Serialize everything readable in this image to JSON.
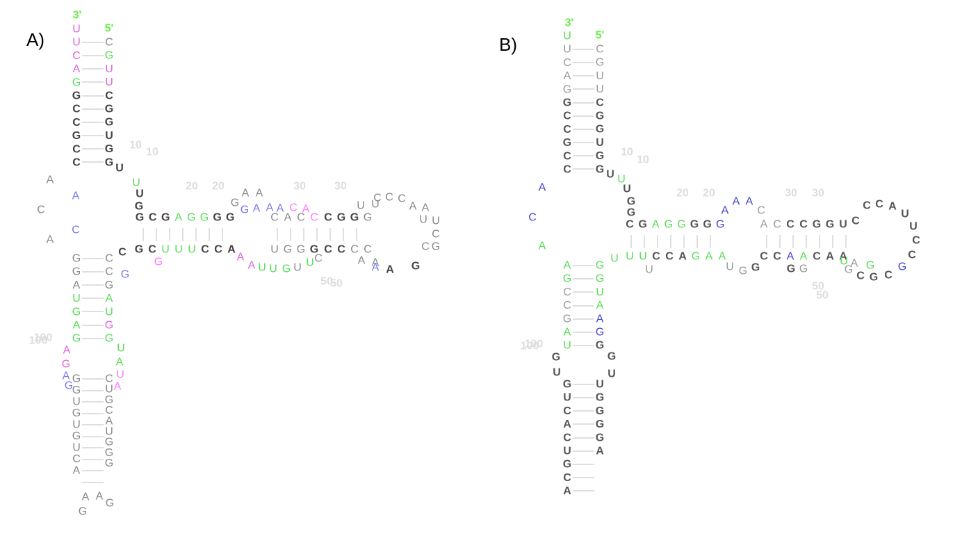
{
  "panels": [
    {
      "id": "A",
      "label": "A)",
      "end_labels": [
        "3'",
        "5'"
      ],
      "position_labels": [
        "10",
        "10",
        "20",
        "20",
        "30",
        "30",
        "50",
        "50",
        "100",
        "100"
      ],
      "colors": {
        "gray": "#888888",
        "dark": "#444444",
        "green": "#55dd55",
        "blue": "#7777ee",
        "magenta": "#dd66dd",
        "pink": "#ff77ff"
      },
      "nucleotides": [
        {
          "t": "U",
          "c": "magenta"
        },
        {
          "t": "U",
          "c": "magenta"
        },
        {
          "t": "C",
          "c": "magenta"
        },
        {
          "t": "A",
          "c": "magenta"
        },
        {
          "t": "G",
          "c": "green"
        },
        {
          "t": "G",
          "c": "dark"
        },
        {
          "t": "C",
          "c": "dark"
        },
        {
          "t": "C",
          "c": "dark"
        },
        {
          "t": "G",
          "c": "dark"
        },
        {
          "t": "C",
          "c": "dark"
        },
        {
          "t": "C",
          "c": "dark"
        },
        {
          "t": "C",
          "c": "gray"
        },
        {
          "t": "G",
          "c": "green"
        },
        {
          "t": "U",
          "c": "magenta"
        },
        {
          "t": "U",
          "c": "magenta"
        },
        {
          "t": "C",
          "c": "dark"
        },
        {
          "t": "G",
          "c": "dark"
        },
        {
          "t": "G",
          "c": "dark"
        },
        {
          "t": "U",
          "c": "dark"
        },
        {
          "t": "G",
          "c": "dark"
        },
        {
          "t": "G",
          "c": "dark"
        },
        {
          "t": "A",
          "c": "gray"
        },
        {
          "t": "C",
          "c": "gray"
        },
        {
          "t": "A",
          "c": "gray"
        },
        {
          "t": "A",
          "c": "blue"
        },
        {
          "t": "C",
          "c": "blue"
        },
        {
          "t": "U",
          "c": "dark"
        },
        {
          "t": "U",
          "c": "green"
        },
        {
          "t": "U",
          "c": "dark"
        },
        {
          "t": "G",
          "c": "dark"
        },
        {
          "t": "G",
          "c": "dark"
        },
        {
          "t": "C",
          "c": "dark"
        },
        {
          "t": "G",
          "c": "dark"
        },
        {
          "t": "A",
          "c": "green"
        },
        {
          "t": "G",
          "c": "green"
        },
        {
          "t": "G",
          "c": "green"
        },
        {
          "t": "G",
          "c": "dark"
        },
        {
          "t": "G",
          "c": "dark"
        },
        {
          "t": "G",
          "c": "gray"
        },
        {
          "t": "A",
          "c": "gray"
        },
        {
          "t": "A",
          "c": "gray"
        },
        {
          "t": "G",
          "c": "blue"
        },
        {
          "t": "A",
          "c": "blue"
        },
        {
          "t": "A",
          "c": "blue"
        },
        {
          "t": "A",
          "c": "blue"
        },
        {
          "t": "C",
          "c": "pink"
        },
        {
          "t": "A",
          "c": "pink"
        },
        {
          "t": "C",
          "c": "gray"
        },
        {
          "t": "A",
          "c": "gray"
        },
        {
          "t": "C",
          "c": "gray"
        },
        {
          "t": "C",
          "c": "pink"
        },
        {
          "t": "C",
          "c": "dark"
        },
        {
          "t": "G",
          "c": "dark"
        },
        {
          "t": "G",
          "c": "dark"
        },
        {
          "t": "G",
          "c": "gray"
        },
        {
          "t": "U",
          "c": "gray"
        },
        {
          "t": "U",
          "c": "gray"
        },
        {
          "t": "C",
          "c": "gray"
        },
        {
          "t": "C",
          "c": "gray"
        },
        {
          "t": "C",
          "c": "gray"
        },
        {
          "t": "A",
          "c": "gray"
        },
        {
          "t": "A",
          "c": "gray"
        },
        {
          "t": "U",
          "c": "gray"
        },
        {
          "t": "U",
          "c": "gray"
        },
        {
          "t": "C",
          "c": "gray"
        },
        {
          "t": "C",
          "c": "gray"
        },
        {
          "t": "G",
          "c": "gray"
        },
        {
          "t": "C",
          "c": "dark"
        },
        {
          "t": "G",
          "c": "dark"
        },
        {
          "t": "C",
          "c": "dark"
        },
        {
          "t": "U",
          "c": "green"
        },
        {
          "t": "U",
          "c": "green"
        },
        {
          "t": "U",
          "c": "green"
        },
        {
          "t": "C",
          "c": "dark"
        },
        {
          "t": "C",
          "c": "dark"
        },
        {
          "t": "A",
          "c": "dark"
        },
        {
          "t": "G",
          "c": "pink"
        },
        {
          "t": "A",
          "c": "magenta"
        },
        {
          "t": "A",
          "c": "magenta"
        },
        {
          "t": "U",
          "c": "green"
        },
        {
          "t": "U",
          "c": "green"
        },
        {
          "t": "G",
          "c": "green"
        },
        {
          "t": "U",
          "c": "gray"
        },
        {
          "t": "U",
          "c": "gray"
        },
        {
          "t": "G",
          "c": "gray"
        },
        {
          "t": "G",
          "c": "gray"
        },
        {
          "t": "G",
          "c": "dark"
        },
        {
          "t": "C",
          "c": "dark"
        },
        {
          "t": "C",
          "c": "dark"
        },
        {
          "t": "C",
          "c": "gray"
        },
        {
          "t": "C",
          "c": "gray"
        },
        {
          "t": "A",
          "c": "gray"
        },
        {
          "t": "A",
          "c": "blue"
        },
        {
          "t": "U",
          "c": "green"
        },
        {
          "t": "C",
          "c": "gray"
        },
        {
          "t": "A",
          "c": "gray"
        },
        {
          "t": "A",
          "c": "dark"
        },
        {
          "t": "G",
          "c": "dark"
        },
        {
          "t": "G",
          "c": "blue"
        },
        {
          "t": "G",
          "c": "gray"
        },
        {
          "t": "G",
          "c": "gray"
        },
        {
          "t": "A",
          "c": "gray"
        },
        {
          "t": "U",
          "c": "green"
        },
        {
          "t": "G",
          "c": "green"
        },
        {
          "t": "A",
          "c": "green"
        },
        {
          "t": "G",
          "c": "green"
        },
        {
          "t": "C",
          "c": "gray"
        },
        {
          "t": "C",
          "c": "gray"
        },
        {
          "t": "G",
          "c": "gray"
        },
        {
          "t": "A",
          "c": "green"
        },
        {
          "t": "U",
          "c": "green"
        },
        {
          "t": "G",
          "c": "magenta"
        },
        {
          "t": "G",
          "c": "green"
        },
        {
          "t": "U",
          "c": "green"
        },
        {
          "t": "A",
          "c": "green"
        },
        {
          "t": "U",
          "c": "pink"
        },
        {
          "t": "A",
          "c": "pink"
        },
        {
          "t": "A",
          "c": "magenta"
        },
        {
          "t": "G",
          "c": "magenta"
        },
        {
          "t": "A",
          "c": "blue"
        },
        {
          "t": "G",
          "c": "blue"
        },
        {
          "t": "G",
          "c": "gray"
        },
        {
          "t": "G",
          "c": "gray"
        },
        {
          "t": "U",
          "c": "gray"
        },
        {
          "t": "G",
          "c": "gray"
        },
        {
          "t": "U",
          "c": "gray"
        },
        {
          "t": "G",
          "c": "gray"
        },
        {
          "t": "U",
          "c": "gray"
        },
        {
          "t": "C",
          "c": "gray"
        },
        {
          "t": "A",
          "c": "gray"
        },
        {
          "t": "C",
          "c": "gray"
        },
        {
          "t": "U",
          "c": "gray"
        },
        {
          "t": "G",
          "c": "gray"
        },
        {
          "t": "C",
          "c": "gray"
        },
        {
          "t": "A",
          "c": "gray"
        },
        {
          "t": "U",
          "c": "gray"
        },
        {
          "t": "G",
          "c": "gray"
        },
        {
          "t": "G",
          "c": "gray"
        },
        {
          "t": "G",
          "c": "gray"
        },
        {
          "t": "G",
          "c": "gray"
        },
        {
          "t": "A",
          "c": "gray"
        },
        {
          "t": "A",
          "c": "gray"
        },
        {
          "t": "G",
          "c": "gray"
        }
      ]
    },
    {
      "id": "B",
      "label": "B)",
      "end_labels": [
        "3'",
        "5'"
      ],
      "position_labels": [
        "10",
        "10",
        "20",
        "20",
        "30",
        "30",
        "50",
        "50",
        "100",
        "100"
      ],
      "colors": {
        "gray": "#999999",
        "dark": "#555555",
        "green": "#55dd55",
        "blue": "#4444cc"
      },
      "nucleotides": [
        {
          "t": "U",
          "c": "green"
        },
        {
          "t": "U",
          "c": "gray"
        },
        {
          "t": "C",
          "c": "gray"
        },
        {
          "t": "A",
          "c": "gray"
        },
        {
          "t": "G",
          "c": "gray"
        },
        {
          "t": "G",
          "c": "dark"
        },
        {
          "t": "C",
          "c": "dark"
        },
        {
          "t": "C",
          "c": "dark"
        },
        {
          "t": "G",
          "c": "dark"
        },
        {
          "t": "C",
          "c": "dark"
        },
        {
          "t": "C",
          "c": "dark"
        },
        {
          "t": "C",
          "c": "gray"
        },
        {
          "t": "G",
          "c": "gray"
        },
        {
          "t": "U",
          "c": "gray"
        },
        {
          "t": "U",
          "c": "gray"
        },
        {
          "t": "C",
          "c": "dark"
        },
        {
          "t": "G",
          "c": "dark"
        },
        {
          "t": "G",
          "c": "dark"
        },
        {
          "t": "U",
          "c": "dark"
        },
        {
          "t": "G",
          "c": "dark"
        },
        {
          "t": "G",
          "c": "dark"
        },
        {
          "t": "A",
          "c": "blue"
        },
        {
          "t": "C",
          "c": "blue"
        },
        {
          "t": "A",
          "c": "green"
        },
        {
          "t": "U",
          "c": "dark"
        },
        {
          "t": "U",
          "c": "green"
        },
        {
          "t": "U",
          "c": "dark"
        },
        {
          "t": "G",
          "c": "dark"
        },
        {
          "t": "G",
          "c": "dark"
        },
        {
          "t": "C",
          "c": "dark"
        },
        {
          "t": "G",
          "c": "dark"
        },
        {
          "t": "A",
          "c": "green"
        },
        {
          "t": "G",
          "c": "green"
        },
        {
          "t": "G",
          "c": "green"
        },
        {
          "t": "G",
          "c": "dark"
        },
        {
          "t": "G",
          "c": "dark"
        },
        {
          "t": "G",
          "c": "blue"
        },
        {
          "t": "A",
          "c": "blue"
        },
        {
          "t": "A",
          "c": "blue"
        },
        {
          "t": "A",
          "c": "blue"
        },
        {
          "t": "C",
          "c": "gray"
        },
        {
          "t": "A",
          "c": "gray"
        },
        {
          "t": "C",
          "c": "gray"
        },
        {
          "t": "C",
          "c": "dark"
        },
        {
          "t": "C",
          "c": "dark"
        },
        {
          "t": "G",
          "c": "dark"
        },
        {
          "t": "G",
          "c": "dark"
        },
        {
          "t": "U",
          "c": "dark"
        },
        {
          "t": "C",
          "c": "dark"
        },
        {
          "t": "C",
          "c": "dark"
        },
        {
          "t": "C",
          "c": "dark"
        },
        {
          "t": "A",
          "c": "dark"
        },
        {
          "t": "U",
          "c": "dark"
        },
        {
          "t": "U",
          "c": "dark"
        },
        {
          "t": "C",
          "c": "dark"
        },
        {
          "t": "C",
          "c": "dark"
        },
        {
          "t": "G",
          "c": "blue"
        },
        {
          "t": "C",
          "c": "dark"
        },
        {
          "t": "G",
          "c": "dark"
        },
        {
          "t": "C",
          "c": "dark"
        },
        {
          "t": "U",
          "c": "green"
        },
        {
          "t": "U",
          "c": "green"
        },
        {
          "t": "U",
          "c": "green"
        },
        {
          "t": "C",
          "c": "dark"
        },
        {
          "t": "C",
          "c": "dark"
        },
        {
          "t": "A",
          "c": "dark"
        },
        {
          "t": "G",
          "c": "green"
        },
        {
          "t": "A",
          "c": "green"
        },
        {
          "t": "A",
          "c": "green"
        },
        {
          "t": "U",
          "c": "gray"
        },
        {
          "t": "U",
          "c": "gray"
        },
        {
          "t": "G",
          "c": "gray"
        },
        {
          "t": "G",
          "c": "dark"
        },
        {
          "t": "C",
          "c": "dark"
        },
        {
          "t": "C",
          "c": "dark"
        },
        {
          "t": "A",
          "c": "blue"
        },
        {
          "t": "A",
          "c": "green"
        },
        {
          "t": "C",
          "c": "dark"
        },
        {
          "t": "A",
          "c": "dark"
        },
        {
          "t": "A",
          "c": "dark"
        },
        {
          "t": "G",
          "c": "dark"
        },
        {
          "t": "G",
          "c": "gray"
        },
        {
          "t": "G",
          "c": "gray"
        },
        {
          "t": "A",
          "c": "gray"
        },
        {
          "t": "U",
          "c": "green"
        },
        {
          "t": "G",
          "c": "green"
        },
        {
          "t": "A",
          "c": "green"
        },
        {
          "t": "G",
          "c": "green"
        },
        {
          "t": "C",
          "c": "gray"
        },
        {
          "t": "C",
          "c": "gray"
        },
        {
          "t": "G",
          "c": "gray"
        },
        {
          "t": "A",
          "c": "green"
        },
        {
          "t": "U",
          "c": "green"
        },
        {
          "t": "G",
          "c": "green"
        },
        {
          "t": "G",
          "c": "green"
        },
        {
          "t": "U",
          "c": "green"
        },
        {
          "t": "A",
          "c": "green"
        },
        {
          "t": "A",
          "c": "blue"
        },
        {
          "t": "G",
          "c": "blue"
        },
        {
          "t": "G",
          "c": "dark"
        },
        {
          "t": "G",
          "c": "dark"
        },
        {
          "t": "U",
          "c": "dark"
        },
        {
          "t": "G",
          "c": "dark"
        },
        {
          "t": "U",
          "c": "dark"
        },
        {
          "t": "G",
          "c": "dark"
        },
        {
          "t": "U",
          "c": "dark"
        },
        {
          "t": "C",
          "c": "dark"
        },
        {
          "t": "A",
          "c": "dark"
        },
        {
          "t": "C",
          "c": "dark"
        },
        {
          "t": "U",
          "c": "dark"
        },
        {
          "t": "G",
          "c": "dark"
        },
        {
          "t": "C",
          "c": "dark"
        },
        {
          "t": "A",
          "c": "dark"
        },
        {
          "t": "U",
          "c": "dark"
        },
        {
          "t": "G",
          "c": "dark"
        },
        {
          "t": "G",
          "c": "dark"
        },
        {
          "t": "G",
          "c": "dark"
        },
        {
          "t": "G",
          "c": "dark"
        },
        {
          "t": "A",
          "c": "dark"
        }
      ]
    }
  ]
}
